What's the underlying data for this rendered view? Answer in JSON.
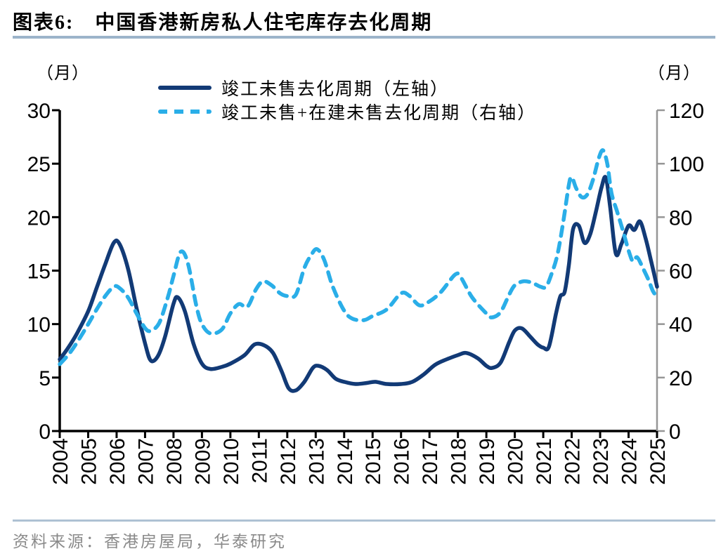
{
  "figure": {
    "title_prefix": "图表6:",
    "title": "中国香港新房私人住宅库存去化周期",
    "left_unit": "（月）",
    "right_unit": "（月）",
    "source": "资料来源：香港房屋局，华泰研究"
  },
  "colors": {
    "solid_line": "#123a76",
    "dashed_line": "#2aaee8",
    "axis_black": "#000000",
    "axis_gray": "#969696",
    "divider": "#9cb4ca",
    "source_text": "#8a8a8a"
  },
  "chart_data": {
    "type": "line",
    "title": "中国香港新房私人住宅库存去化周期",
    "x_ticks": [
      2004,
      2005,
      2006,
      2007,
      2008,
      2009,
      2010,
      2011,
      2012,
      2013,
      2014,
      2015,
      2016,
      2017,
      2018,
      2019,
      2020,
      2021,
      2022,
      2023,
      2024,
      2025
    ],
    "left_axis": {
      "unit": "（月）",
      "min": 0,
      "max": 30,
      "ticks": [
        0,
        5,
        10,
        15,
        20,
        25,
        30
      ]
    },
    "right_axis": {
      "unit": "（月）",
      "min": 0,
      "max": 120,
      "ticks": [
        0,
        20,
        40,
        60,
        80,
        100,
        120
      ]
    },
    "grid": false,
    "legend_position": "top-center",
    "series": [
      {
        "name": "竣工未售去化周期（左轴）",
        "axis": "left",
        "style": "solid",
        "color": "#123a76",
        "points": [
          [
            2004,
            6.7
          ],
          [
            2004.3,
            7.8
          ],
          [
            2004.6,
            9.1
          ],
          [
            2005,
            11.2
          ],
          [
            2005.3,
            13.4
          ],
          [
            2005.6,
            15.6
          ],
          [
            2005.9,
            17.6
          ],
          [
            2006.1,
            17.5
          ],
          [
            2006.4,
            15.2
          ],
          [
            2006.7,
            11.5
          ],
          [
            2007,
            8.2
          ],
          [
            2007.2,
            6.6
          ],
          [
            2007.45,
            7
          ],
          [
            2007.7,
            8.8
          ],
          [
            2008,
            11.9
          ],
          [
            2008.15,
            12.5
          ],
          [
            2008.4,
            11.2
          ],
          [
            2008.7,
            8.2
          ],
          [
            2009,
            6.3
          ],
          [
            2009.3,
            5.8
          ],
          [
            2009.7,
            6
          ],
          [
            2010,
            6.3
          ],
          [
            2010.5,
            7.1
          ],
          [
            2010.85,
            8.1
          ],
          [
            2011.2,
            8
          ],
          [
            2011.5,
            7.3
          ],
          [
            2011.8,
            5.6
          ],
          [
            2012.05,
            4
          ],
          [
            2012.3,
            3.8
          ],
          [
            2012.6,
            4.6
          ],
          [
            2012.9,
            5.9
          ],
          [
            2013.1,
            6.1
          ],
          [
            2013.4,
            5.7
          ],
          [
            2013.7,
            4.9
          ],
          [
            2014,
            4.6
          ],
          [
            2014.4,
            4.4
          ],
          [
            2014.8,
            4.5
          ],
          [
            2015.1,
            4.6
          ],
          [
            2015.5,
            4.4
          ],
          [
            2016,
            4.4
          ],
          [
            2016.4,
            4.6
          ],
          [
            2016.8,
            5.3
          ],
          [
            2017.2,
            6.2
          ],
          [
            2017.6,
            6.7
          ],
          [
            2018,
            7.1
          ],
          [
            2018.3,
            7.3
          ],
          [
            2018.7,
            6.8
          ],
          [
            2019,
            6.1
          ],
          [
            2019.2,
            5.9
          ],
          [
            2019.5,
            6.4
          ],
          [
            2019.8,
            8.3
          ],
          [
            2020,
            9.4
          ],
          [
            2020.25,
            9.6
          ],
          [
            2020.55,
            8.8
          ],
          [
            2020.8,
            8.1
          ],
          [
            2021,
            7.8
          ],
          [
            2021.2,
            7.9
          ],
          [
            2021.45,
            11
          ],
          [
            2021.6,
            12.6
          ],
          [
            2021.75,
            13
          ],
          [
            2021.9,
            15.5
          ],
          [
            2022.05,
            18.9
          ],
          [
            2022.25,
            19.2
          ],
          [
            2022.45,
            17.6
          ],
          [
            2022.65,
            18.4
          ],
          [
            2022.85,
            20.5
          ],
          [
            2023.05,
            22.8
          ],
          [
            2023.2,
            23.7
          ],
          [
            2023.35,
            21
          ],
          [
            2023.55,
            16.6
          ],
          [
            2023.75,
            17.5
          ],
          [
            2024,
            19.2
          ],
          [
            2024.2,
            18.8
          ],
          [
            2024.4,
            19.6
          ],
          [
            2024.6,
            18
          ],
          [
            2024.8,
            15.8
          ],
          [
            2025,
            13.5
          ]
        ]
      },
      {
        "name": "竣工未售+在建未售去化周期（右轴）",
        "axis": "right",
        "style": "dashed",
        "color": "#2aaee8",
        "points": [
          [
            2004,
            25
          ],
          [
            2004.3,
            28.5
          ],
          [
            2004.6,
            33
          ],
          [
            2005,
            40
          ],
          [
            2005.3,
            45.5
          ],
          [
            2005.6,
            50.5
          ],
          [
            2005.9,
            54
          ],
          [
            2006.1,
            53.5
          ],
          [
            2006.4,
            50
          ],
          [
            2006.7,
            44
          ],
          [
            2007,
            38.5
          ],
          [
            2007.2,
            37.5
          ],
          [
            2007.5,
            40.5
          ],
          [
            2007.8,
            50
          ],
          [
            2008,
            58
          ],
          [
            2008.25,
            67
          ],
          [
            2008.5,
            63
          ],
          [
            2008.8,
            47
          ],
          [
            2009,
            40
          ],
          [
            2009.3,
            36.5
          ],
          [
            2009.7,
            38
          ],
          [
            2010,
            44
          ],
          [
            2010.3,
            47.5
          ],
          [
            2010.6,
            46.5
          ],
          [
            2010.9,
            53
          ],
          [
            2011.15,
            56
          ],
          [
            2011.45,
            54.5
          ],
          [
            2011.75,
            51.5
          ],
          [
            2012,
            50.5
          ],
          [
            2012.3,
            51
          ],
          [
            2012.6,
            61
          ],
          [
            2012.85,
            66
          ],
          [
            2013.05,
            68
          ],
          [
            2013.3,
            64
          ],
          [
            2013.6,
            54
          ],
          [
            2014,
            45
          ],
          [
            2014.3,
            42
          ],
          [
            2014.7,
            41.5
          ],
          [
            2015,
            43
          ],
          [
            2015.5,
            45.5
          ],
          [
            2016,
            51.5
          ],
          [
            2016.3,
            50.5
          ],
          [
            2016.65,
            47
          ],
          [
            2017,
            48.5
          ],
          [
            2017.4,
            52
          ],
          [
            2017.9,
            58.5
          ],
          [
            2018.1,
            57.5
          ],
          [
            2018.5,
            50
          ],
          [
            2019,
            44
          ],
          [
            2019.2,
            42.5
          ],
          [
            2019.5,
            44.5
          ],
          [
            2019.8,
            51
          ],
          [
            2020,
            54.5
          ],
          [
            2020.3,
            56
          ],
          [
            2020.6,
            55.5
          ],
          [
            2020.9,
            54
          ],
          [
            2021.1,
            54
          ],
          [
            2021.3,
            59
          ],
          [
            2021.5,
            66
          ],
          [
            2021.7,
            78
          ],
          [
            2021.9,
            92
          ],
          [
            2022,
            95
          ],
          [
            2022.15,
            91
          ],
          [
            2022.35,
            87.5
          ],
          [
            2022.55,
            88.5
          ],
          [
            2022.75,
            94
          ],
          [
            2022.95,
            102
          ],
          [
            2023.1,
            105
          ],
          [
            2023.25,
            100
          ],
          [
            2023.4,
            89
          ],
          [
            2023.6,
            82
          ],
          [
            2023.8,
            75
          ],
          [
            2024,
            67.5
          ],
          [
            2024.15,
            63.5
          ],
          [
            2024.3,
            65
          ],
          [
            2024.5,
            61
          ],
          [
            2024.7,
            56.5
          ],
          [
            2024.85,
            52.5
          ],
          [
            2025,
            50
          ]
        ]
      }
    ]
  }
}
